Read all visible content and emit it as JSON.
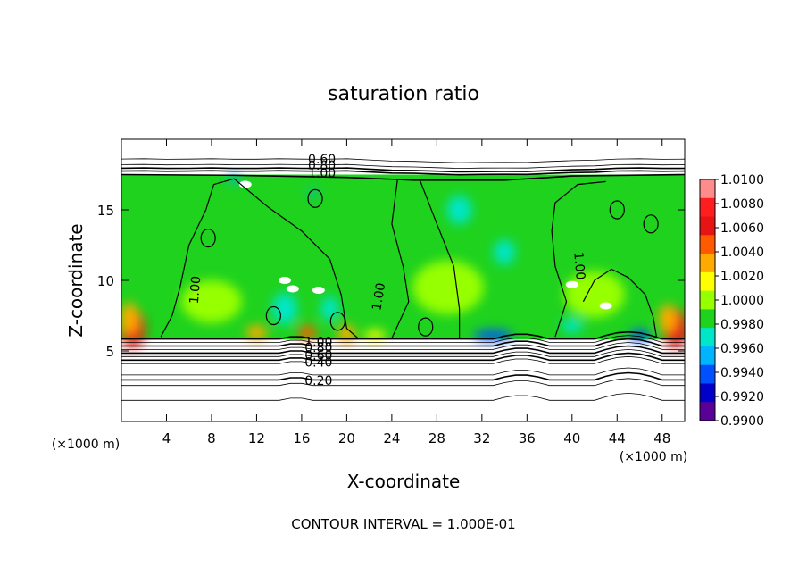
{
  "chart_data": {
    "type": "heatmap",
    "title": "saturation ratio",
    "xlabel": "X-coordinate",
    "ylabel": "Z-coordinate",
    "x_unit": "(×1000 m)",
    "y_unit": "(×1000 m)",
    "xlim": [
      0,
      50
    ],
    "ylim": [
      0,
      20
    ],
    "x_ticks": [
      "4",
      "8",
      "12",
      "16",
      "20",
      "24",
      "28",
      "32",
      "36",
      "40",
      "44",
      "48"
    ],
    "y_ticks": [
      "5",
      "10",
      "15"
    ],
    "colorbar": {
      "labels": [
        "1.0100",
        "1.0080",
        "1.0060",
        "1.0040",
        "1.0020",
        "1.0000",
        "0.9980",
        "0.9960",
        "0.9940",
        "0.9920",
        "0.9900"
      ],
      "colors": [
        "#ff8c8c",
        "#ff1e1e",
        "#e61414",
        "#ff5a00",
        "#ffaa00",
        "#ffff00",
        "#96ff00",
        "#1ed21e",
        "#00e6c8",
        "#00b4ff",
        "#0050ff",
        "#0000c8",
        "#5a0096"
      ]
    },
    "contour_labels": [
      "0.60",
      "0.80",
      "1.00",
      "1.00",
      "1.00",
      "1.00",
      "1.00",
      "0.80",
      "0.60",
      "0.40",
      "0.20"
    ],
    "footer": "CONTOUR INTERVAL = 1.000E-01"
  }
}
